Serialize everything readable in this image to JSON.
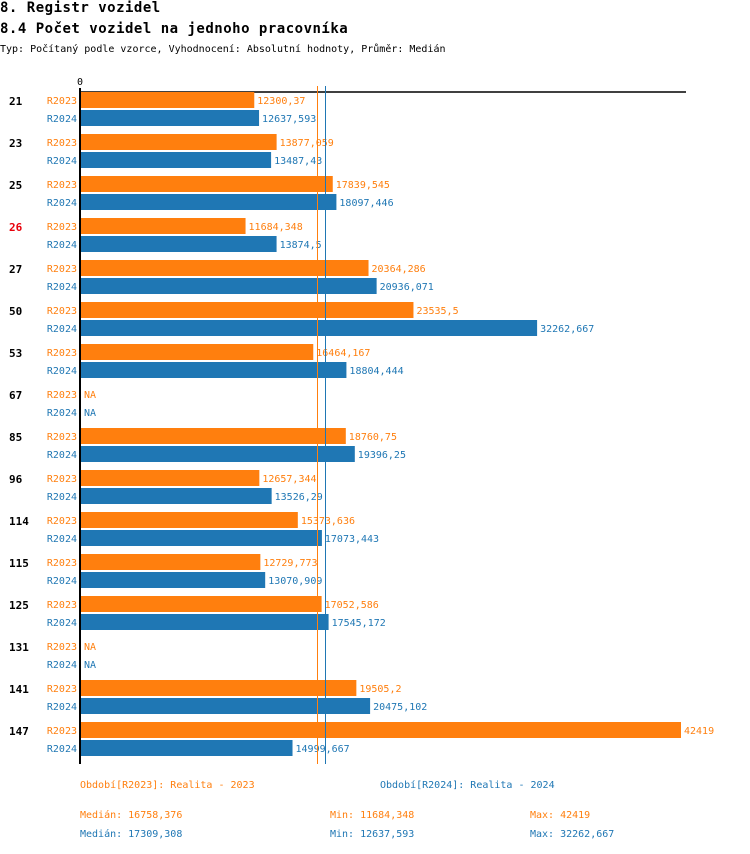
{
  "header": {
    "section_title": "8. Registr vozidel",
    "chart_title": "8.4 Počet vozidel na jednoho pracovníka",
    "subtitle": "Typ: Počítaný podle vzorce, Vyhodnocení: Absolutní hodnoty, Průměr: Medián"
  },
  "colors": {
    "R2023": "#ff7f0e",
    "R2024": "#1f77b4",
    "highlight_category": "#e8000b"
  },
  "chart_data": {
    "type": "bar",
    "orientation": "horizontal",
    "title": "8.4 Počet vozidel na jednoho pracovníka",
    "xlabel": "",
    "ylabel": "",
    "axis_zero_label": "0",
    "xlim": [
      0,
      42419
    ],
    "grid": false,
    "categories": [
      "21",
      "23",
      "25",
      "26",
      "27",
      "50",
      "53",
      "67",
      "85",
      "96",
      "114",
      "115",
      "125",
      "131",
      "141",
      "147"
    ],
    "highlighted_category": "26",
    "series": [
      {
        "name": "R2023",
        "values": [
          12300.37,
          13877.059,
          17839.545,
          11684.348,
          20364.286,
          23535.5,
          16464.167,
          null,
          18760.75,
          12657.344,
          15373.636,
          12729.773,
          17052.586,
          null,
          19505.2,
          42419
        ],
        "labels": [
          "12300,37",
          "13877,059",
          "17839,545",
          "11684,348",
          "20364,286",
          "23535,5",
          "16464,167",
          "NA",
          "18760,75",
          "12657,344",
          "15373,636",
          "12729,773",
          "17052,586",
          "NA",
          "19505,2",
          "42419"
        ],
        "median": 16758.376
      },
      {
        "name": "R2024",
        "values": [
          12637.593,
          13487.43,
          18097.446,
          13874.5,
          20936.071,
          32262.667,
          18804.444,
          null,
          19396.25,
          13526.29,
          17073.443,
          13070.909,
          17545.172,
          null,
          20475.102,
          14999.667
        ],
        "labels": [
          "12637,593",
          "13487,43",
          "18097,446",
          "13874,5",
          "20936,071",
          "32262,667",
          "18804,444",
          "NA",
          "19396,25",
          "13526,29",
          "17073,443",
          "13070,909",
          "17545,172",
          "NA",
          "20475,102",
          "14999,667"
        ],
        "median": 17309.308
      }
    ],
    "reference_lines": [
      {
        "series": "R2023",
        "type": "median",
        "value": 16758.376
      },
      {
        "series": "R2024",
        "type": "median",
        "value": 17309.308
      }
    ]
  },
  "legend": {
    "period_2023": "Období[R2023]: Realita - 2023",
    "period_2024": "Období[R2024]: Realita - 2024",
    "stats_2023": {
      "median": "Medián: 16758,376",
      "min": "Min: 11684,348",
      "max": "Max: 42419"
    },
    "stats_2024": {
      "median": "Medián: 17309,308",
      "min": "Min: 12637,593",
      "max": "Max: 32262,667"
    }
  }
}
